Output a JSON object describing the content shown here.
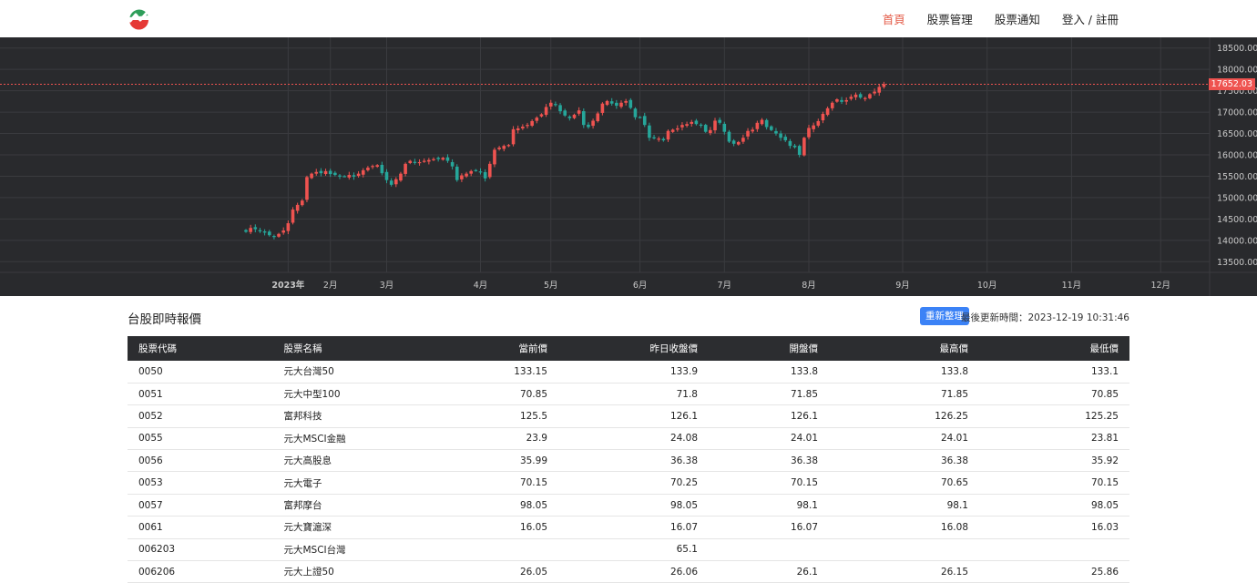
{
  "nav": {
    "logo_icon": "trend-logo-icon",
    "links": [
      {
        "label": "首頁",
        "active": true
      },
      {
        "label": "股票管理",
        "active": false
      },
      {
        "label": "股票通知",
        "active": false
      },
      {
        "label": "登入 / 註冊",
        "active": false
      }
    ]
  },
  "chart_data": {
    "type": "candlestick",
    "y_ticks": [
      "18500.00",
      "18000.00",
      "17500.00",
      "17000.00",
      "16500.00",
      "16000.00",
      "15500.00",
      "15000.00",
      "14500.00",
      "14000.00",
      "13500.00"
    ],
    "y_range": [
      13250,
      18750
    ],
    "x_ticks": [
      {
        "label": "2023年",
        "index": 9
      },
      {
        "label": "2月",
        "index": 18
      },
      {
        "label": "3月",
        "index": 30
      },
      {
        "label": "4月",
        "index": 50
      },
      {
        "label": "5月",
        "index": 65
      },
      {
        "label": "6月",
        "index": 84
      },
      {
        "label": "7月",
        "index": 102
      },
      {
        "label": "8月",
        "index": 120
      },
      {
        "label": "9月",
        "index": 140
      },
      {
        "label": "10月",
        "index": 158
      },
      {
        "label": "11月",
        "index": 176
      },
      {
        "label": "12月",
        "index": 195
      }
    ],
    "last_price": "17652.03",
    "last_value": 17652.03,
    "up_color": "#ef5350",
    "down_color": "#26a69a",
    "background": "#292a2d",
    "closes": [
      14200,
      14290,
      14260,
      14210,
      14180,
      14120,
      14080,
      14150,
      14230,
      14400,
      14720,
      14830,
      14930,
      15480,
      15560,
      15600,
      15570,
      15620,
      15550,
      15530,
      15490,
      15500,
      15530,
      15490,
      15560,
      15640,
      15700,
      15740,
      15760,
      15570,
      15410,
      15300,
      15430,
      15560,
      15790,
      15860,
      15820,
      15830,
      15860,
      15880,
      15900,
      15900,
      15930,
      15860,
      15730,
      15410,
      15520,
      15560,
      15620,
      15630,
      15590,
      15450,
      15790,
      16120,
      16170,
      16210,
      16230,
      16600,
      16620,
      16660,
      16700,
      16790,
      16870,
      16950,
      17120,
      17220,
      17170,
      17020,
      16920,
      16860,
      16940,
      17040,
      16700,
      16650,
      16800,
      16970,
      17200,
      17260,
      17200,
      17150,
      17220,
      17260,
      17100,
      16880,
      16880,
      16700,
      16400,
      16400,
      16380,
      16340,
      16560,
      16590,
      16620,
      16700,
      16720,
      16770,
      16720,
      16690,
      16540,
      16580,
      16800,
      16750,
      16540,
      16310,
      16260,
      16300,
      16400,
      16560,
      16590,
      16750,
      16820,
      16650,
      16580,
      16500,
      16400,
      16340,
      16210,
      16180,
      16000,
      16400,
      16630,
      16690,
      16790,
      16960,
      17090,
      17220,
      17300,
      17240,
      17280,
      17360,
      17410,
      17340,
      17330,
      17420,
      17480,
      17590,
      17652
    ],
    "gridlines": true
  },
  "section": {
    "title": "台股即時報價",
    "refresh_label": "重新整理",
    "update_label": "最後更新時間：2023-12-19 10:31:46"
  },
  "table": {
    "headers": [
      "股票代碼",
      "股票名稱",
      "當前價",
      "昨日收盤價",
      "開盤價",
      "最高價",
      "最低價"
    ],
    "rows": [
      [
        "0050",
        "元大台灣50",
        "133.15",
        "133.9",
        "133.8",
        "133.8",
        "133.1"
      ],
      [
        "0051",
        "元大中型100",
        "70.85",
        "71.8",
        "71.85",
        "71.85",
        "70.85"
      ],
      [
        "0052",
        "富邦科技",
        "125.5",
        "126.1",
        "126.1",
        "126.25",
        "125.25"
      ],
      [
        "0055",
        "元大MSCI金融",
        "23.9",
        "24.08",
        "24.01",
        "24.01",
        "23.81"
      ],
      [
        "0056",
        "元大高股息",
        "35.99",
        "36.38",
        "36.38",
        "36.38",
        "35.92"
      ],
      [
        "0053",
        "元大電子",
        "70.15",
        "70.25",
        "70.15",
        "70.65",
        "70.15"
      ],
      [
        "0057",
        "富邦摩台",
        "98.05",
        "98.05",
        "98.1",
        "98.1",
        "98.05"
      ],
      [
        "0061",
        "元大寶滬深",
        "16.05",
        "16.07",
        "16.07",
        "16.08",
        "16.03"
      ],
      [
        "006203",
        "元大MSCI台灣",
        "",
        "65.1",
        "",
        "",
        ""
      ],
      [
        "006206",
        "元大上證50",
        "26.05",
        "26.06",
        "26.1",
        "26.15",
        "25.86"
      ]
    ]
  }
}
